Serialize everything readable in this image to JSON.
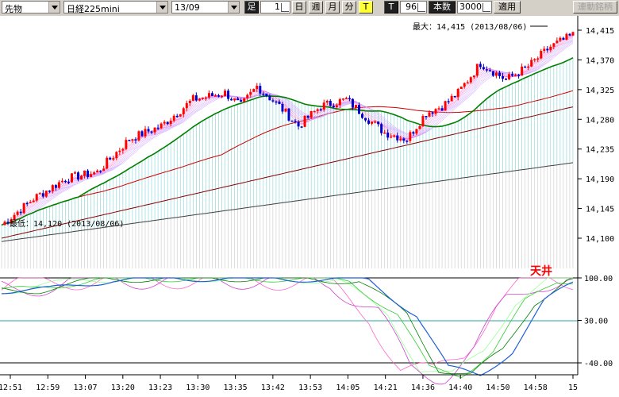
{
  "toolbar": {
    "type_select": "先物",
    "symbol_select": "日経225mini",
    "contract_select": "13/09",
    "foot_label": "足",
    "interval_value": "1",
    "day_btn": "日",
    "week_btn": "週",
    "month_btn": "月",
    "minute_btn": "分",
    "tick_btn": "T",
    "tick_label": "T",
    "count_value": "96",
    "bars_label": "本数",
    "bars_value": "3000",
    "apply_btn": "適用",
    "linked_btn": "連動銘柄"
  },
  "chart_data": {
    "type": "candlestick",
    "price_axis": [
      "14,415",
      "14,370",
      "14,325",
      "14,280",
      "14,235",
      "14,190",
      "14,145",
      "14,100"
    ],
    "oscillator_axis": [
      "100.00",
      "30.00",
      "-40.00"
    ],
    "time_axis": [
      "12:51",
      "12:59",
      "13:07",
      "13:20",
      "13:23",
      "13:30",
      "13:35",
      "13:42",
      "13:53",
      "14:05",
      "14:21",
      "14:36",
      "14:40",
      "14:50",
      "14:58",
      "15"
    ],
    "max_label": "最大：14,415 (2013/08/06)",
    "min_label": "最低：14,120 (2013/08/06)",
    "oscillator_annotation": "天井",
    "colors": {
      "up": "#ff0000",
      "down": "#0000cc",
      "ma_short": "#008000",
      "ma_mid": "#cc0000",
      "ma_long": "#8b0000",
      "ma_longest": "#404040",
      "cloud": "#7fd3d3"
    }
  }
}
